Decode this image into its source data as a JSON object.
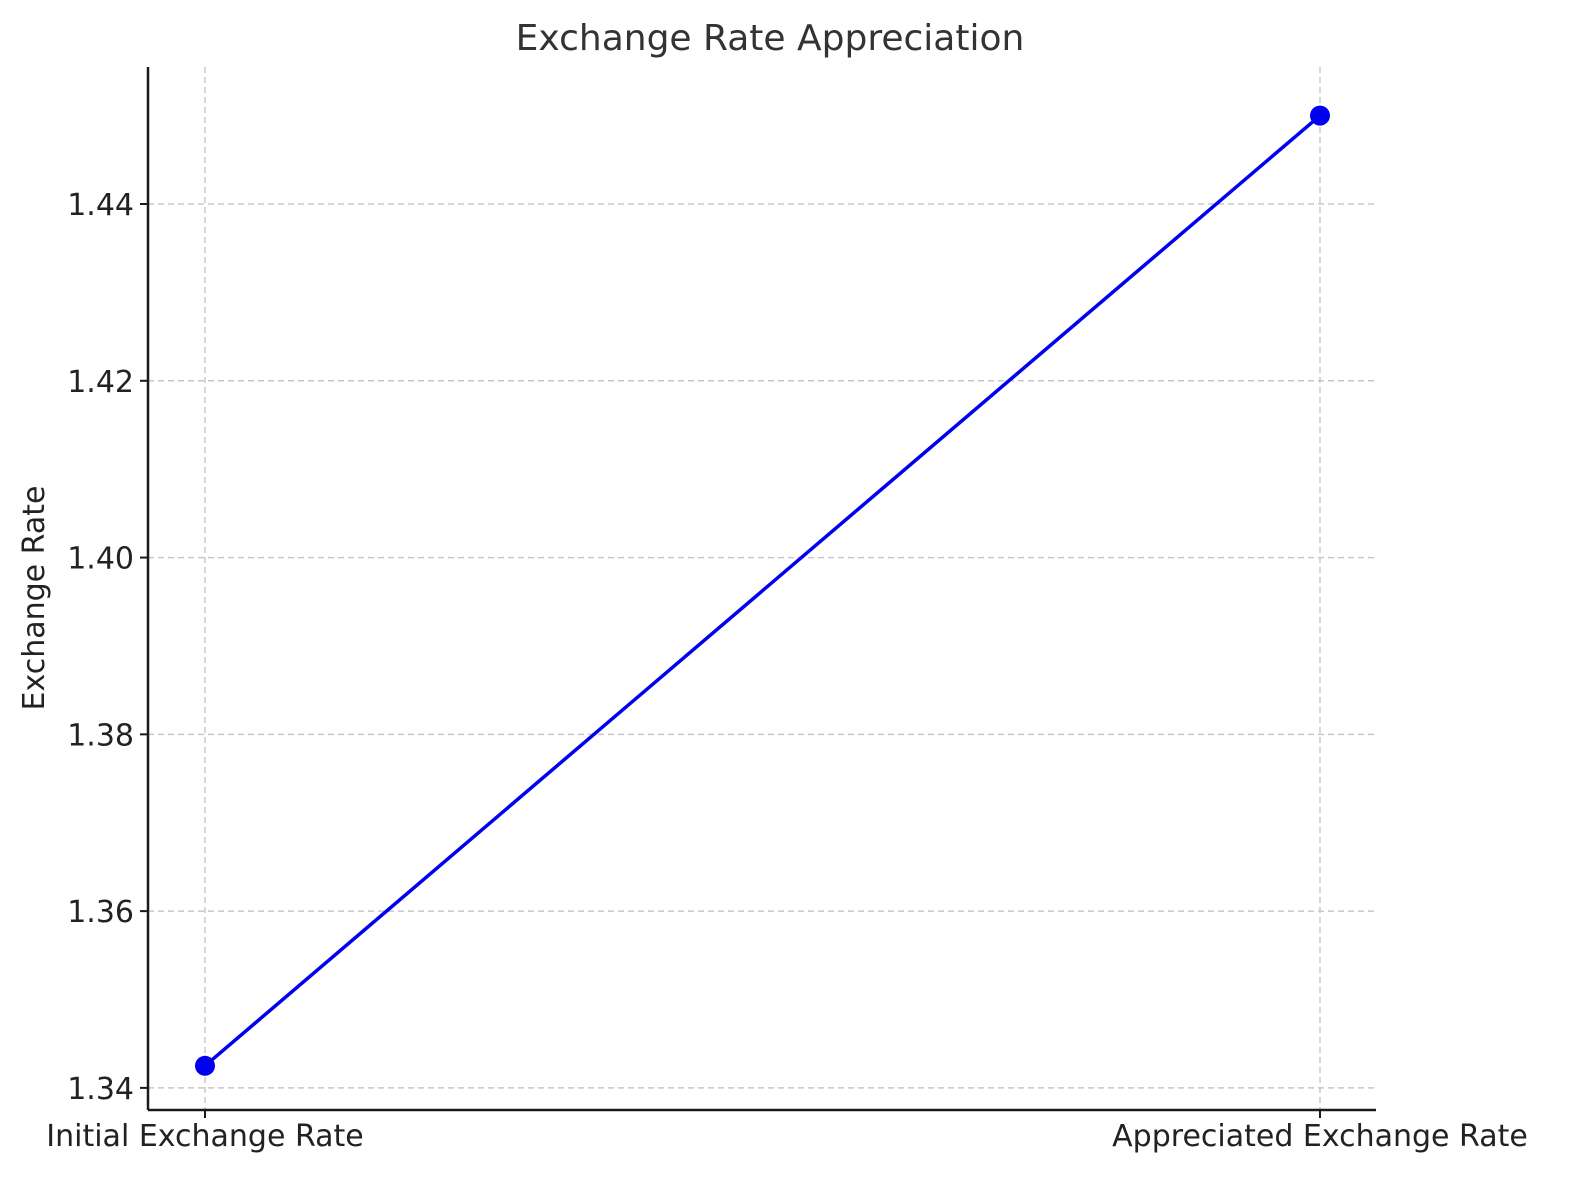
{
  "chart_data": {
    "type": "line",
    "title": "Exchange Rate Appreciation",
    "xlabel": "",
    "ylabel": "Exchange Rate",
    "categories": [
      "Initial Exchange Rate",
      "Appreciated Exchange Rate"
    ],
    "series": [
      {
        "values": [
          1.3425,
          1.45
        ],
        "color": "#0000ee"
      }
    ],
    "ylim": [
      1.3375,
      1.4555
    ],
    "yticks": [
      "1.34",
      "1.36",
      "1.38",
      "1.40",
      "1.42",
      "1.44"
    ],
    "grid": true,
    "marker": "circle"
  }
}
